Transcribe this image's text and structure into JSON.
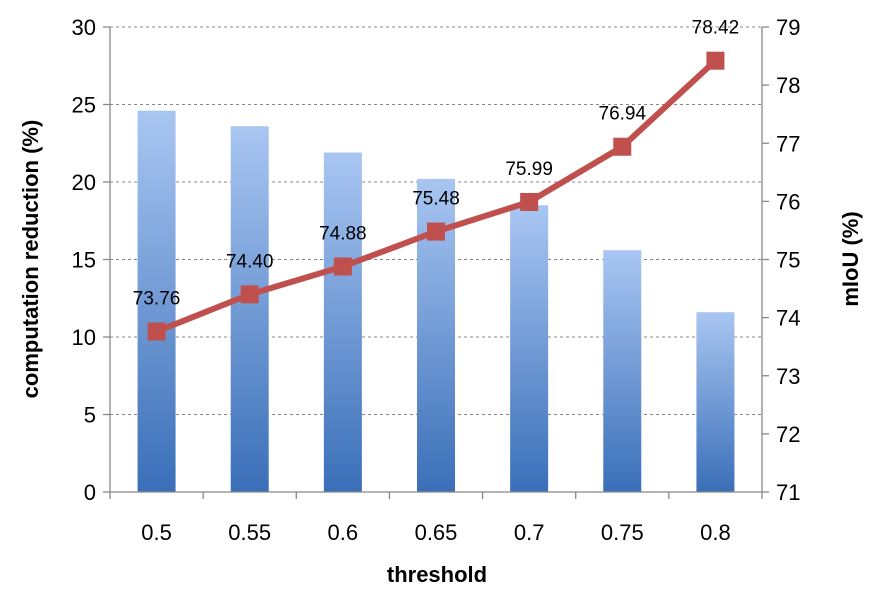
{
  "chart_data": {
    "type": "bar",
    "categories": [
      "0.5",
      "0.55",
      "0.6",
      "0.65",
      "0.7",
      "0.75",
      "0.8"
    ],
    "series": [
      {
        "type": "bar",
        "axis": "left",
        "values": [
          24.6,
          23.6,
          21.9,
          20.2,
          18.5,
          15.6,
          11.6
        ],
        "color": "#4f81bd"
      },
      {
        "type": "line",
        "axis": "right",
        "values": [
          73.76,
          74.4,
          74.88,
          75.48,
          75.99,
          76.94,
          78.42
        ],
        "labels": [
          "73.76",
          "74.40",
          "74.88",
          "75.48",
          "75.99",
          "76.94",
          "78.42"
        ],
        "color": "#c0504d"
      }
    ],
    "xlabel": "threshold",
    "ylabel": "computation reduction (%)",
    "y2label": "mIoU (%)",
    "ylim": [
      0,
      30
    ],
    "y2lim": [
      71,
      79
    ],
    "yticks": [
      "0",
      "5",
      "10",
      "15",
      "20",
      "25",
      "30"
    ],
    "y2ticks": [
      "71",
      "72",
      "73",
      "74",
      "75",
      "76",
      "77",
      "78",
      "79"
    ],
    "grid": true
  }
}
